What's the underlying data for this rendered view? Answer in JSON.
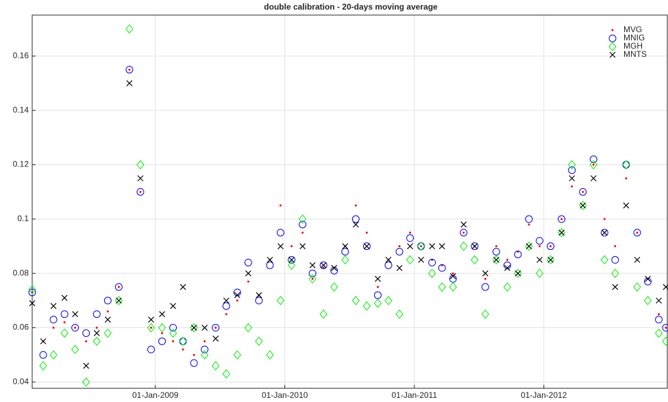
{
  "chart_data": {
    "type": "scatter",
    "title": "double calibration - 20-days moving average",
    "x": [
      "2008-01-20",
      "2008-02-20",
      "2008-03-20",
      "2008-04-20",
      "2008-05-20",
      "2008-06-20",
      "2008-07-20",
      "2008-08-20",
      "2008-09-20",
      "2008-10-20",
      "2008-11-20",
      "2008-12-20",
      "2009-01-20",
      "2009-02-20",
      "2009-03-20",
      "2009-04-20",
      "2009-05-20",
      "2009-06-20",
      "2009-07-20",
      "2009-08-20",
      "2009-09-20",
      "2009-10-20",
      "2009-11-20",
      "2009-12-20",
      "2010-01-20",
      "2010-02-20",
      "2010-03-20",
      "2010-04-20",
      "2010-05-20",
      "2010-06-20",
      "2010-07-20",
      "2010-08-20",
      "2010-09-20",
      "2010-10-20",
      "2010-11-20",
      "2010-12-20",
      "2011-01-20",
      "2011-02-20",
      "2011-03-20",
      "2011-04-20",
      "2011-05-20",
      "2011-06-20",
      "2011-07-20",
      "2011-08-20",
      "2011-09-20",
      "2011-10-20",
      "2011-11-20",
      "2011-12-20",
      "2012-01-20",
      "2012-02-20",
      "2012-03-20",
      "2012-04-20",
      "2012-05-20",
      "2012-06-20",
      "2012-07-20",
      "2012-08-20",
      "2012-09-20",
      "2012-10-20",
      "2012-11-20",
      "2012-12-10"
    ],
    "series": [
      {
        "name": "MVG",
        "color": "#ff0000",
        "marker": "dot",
        "values": [
          0.073,
          0.055,
          0.06,
          0.062,
          0.06,
          0.055,
          0.06,
          0.066,
          0.075,
          0.155,
          0.11,
          0.06,
          0.058,
          0.055,
          0.052,
          0.05,
          0.055,
          0.06,
          0.065,
          0.07,
          0.077,
          0.072,
          0.085,
          0.105,
          0.09,
          0.095,
          0.078,
          0.082,
          0.082,
          0.09,
          0.105,
          0.095,
          0.075,
          0.085,
          0.09,
          0.095,
          0.09,
          0.085,
          0.083,
          0.08,
          0.095,
          0.09,
          0.078,
          0.09,
          0.085,
          0.088,
          0.098,
          0.09,
          0.09,
          0.1,
          0.112,
          0.11,
          0.12,
          0.1,
          0.09,
          0.115,
          0.095,
          0.078,
          0.065,
          0.06
        ]
      },
      {
        "name": "MNIG",
        "color": "#0000ff",
        "marker": "circle",
        "values": [
          0.073,
          0.05,
          0.063,
          0.065,
          0.06,
          0.058,
          0.065,
          0.07,
          0.075,
          0.155,
          0.11,
          0.052,
          0.055,
          0.06,
          0.055,
          0.047,
          0.052,
          0.06,
          0.068,
          0.073,
          0.084,
          0.07,
          0.083,
          0.095,
          0.085,
          0.098,
          0.08,
          0.083,
          0.081,
          0.088,
          0.1,
          0.09,
          0.072,
          0.083,
          0.088,
          0.093,
          0.09,
          0.084,
          0.082,
          0.078,
          0.095,
          0.09,
          0.075,
          0.088,
          0.083,
          0.087,
          0.1,
          0.092,
          0.09,
          0.1,
          0.118,
          0.11,
          0.122,
          0.095,
          0.085,
          0.12,
          0.095,
          0.077,
          0.063,
          0.06
        ]
      },
      {
        "name": "MGH",
        "color": "#00ee00",
        "marker": "diamond",
        "values": [
          0.074,
          0.046,
          0.05,
          0.058,
          0.052,
          0.04,
          0.055,
          0.058,
          0.07,
          0.17,
          0.12,
          0.06,
          0.06,
          0.058,
          0.055,
          0.06,
          0.05,
          0.046,
          0.043,
          0.05,
          0.06,
          0.055,
          0.05,
          0.07,
          0.083,
          0.1,
          0.078,
          0.065,
          0.075,
          0.085,
          0.07,
          0.068,
          0.069,
          0.07,
          0.065,
          0.085,
          0.09,
          0.08,
          0.075,
          0.075,
          0.09,
          0.085,
          0.065,
          0.085,
          0.075,
          0.08,
          0.09,
          0.08,
          0.085,
          0.095,
          0.12,
          0.105,
          0.12,
          0.085,
          0.08,
          0.12,
          0.075,
          0.07,
          0.058,
          0.055
        ]
      },
      {
        "name": "MNTS",
        "color": "#000000",
        "marker": "x",
        "values": [
          0.069,
          0.055,
          0.068,
          0.071,
          0.065,
          0.046,
          0.058,
          0.063,
          0.07,
          0.15,
          0.115,
          0.063,
          0.065,
          0.068,
          0.075,
          0.06,
          0.06,
          0.056,
          0.07,
          0.072,
          0.08,
          0.072,
          0.085,
          0.09,
          0.085,
          0.09,
          0.083,
          0.083,
          0.082,
          0.09,
          0.098,
          0.09,
          0.078,
          0.085,
          0.082,
          0.09,
          0.085,
          0.09,
          0.09,
          0.079,
          0.098,
          0.09,
          0.08,
          0.085,
          0.082,
          0.08,
          0.09,
          0.085,
          0.085,
          0.095,
          0.115,
          0.105,
          0.115,
          0.095,
          0.075,
          0.105,
          0.085,
          0.078,
          0.07,
          0.075
        ]
      }
    ],
    "xlim": [
      "2008-01-20",
      "2012-12-14"
    ],
    "xticks": [
      {
        "value": "2009-01-01",
        "label": "01-Jan-2009"
      },
      {
        "value": "2010-01-01",
        "label": "01-Jan-2010"
      },
      {
        "value": "2011-01-01",
        "label": "01-Jan-2011"
      },
      {
        "value": "2012-01-01",
        "label": "01-Jan-2012"
      }
    ],
    "ylim": [
      0.0377,
      0.1751
    ],
    "yticks": [
      0.04,
      0.06,
      0.08,
      0.1,
      0.12,
      0.14,
      0.16
    ],
    "grid": true,
    "legend": "northeast"
  }
}
